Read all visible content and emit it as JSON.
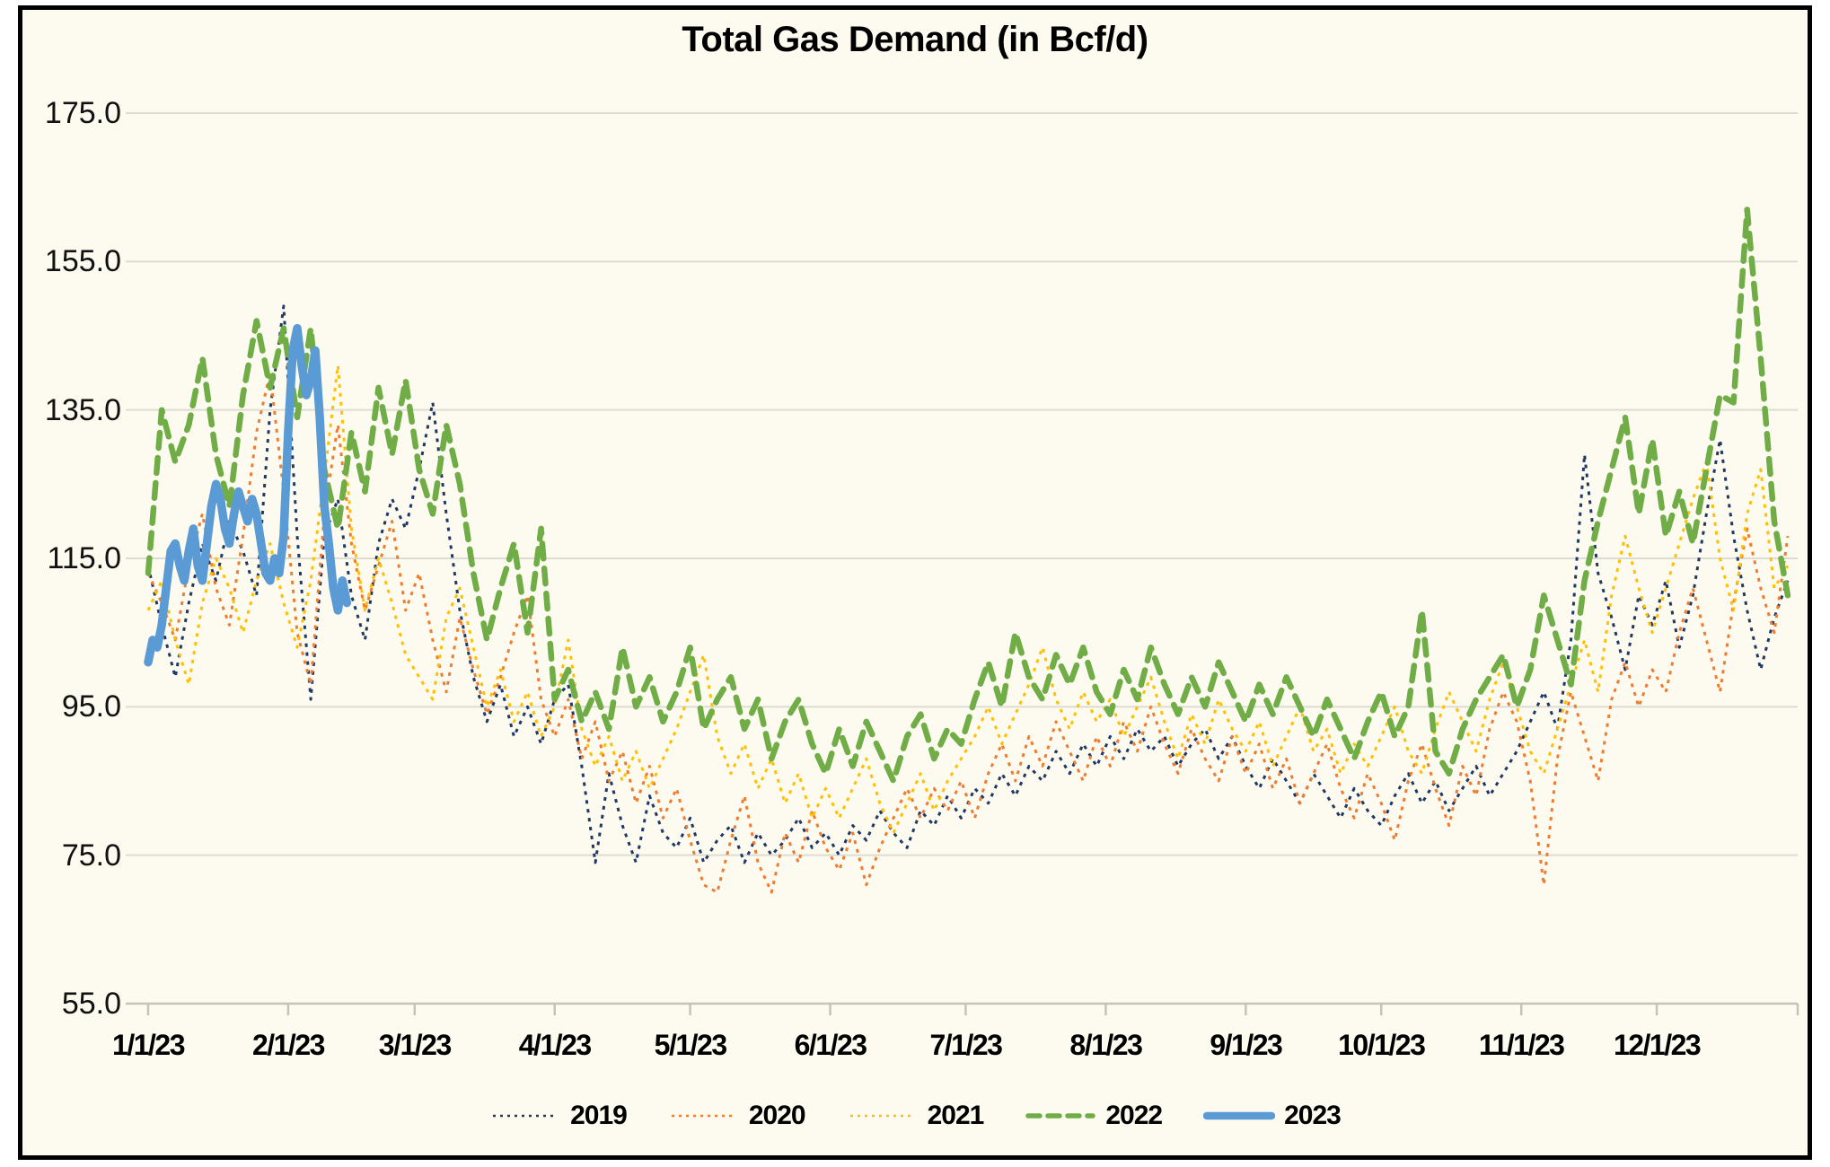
{
  "colors": {
    "background": "#FDFBF0",
    "grid": "#DCDCD2",
    "axis": "#C3C3BA",
    "border": "#000000"
  },
  "chart_data": {
    "type": "line",
    "title": "Total Gas Demand (in Bcf/d)",
    "ylim": [
      55,
      175
    ],
    "grid": "horizontal",
    "legend_position": "bottom",
    "y_axis": {
      "tick_values": [
        175,
        155,
        135,
        115,
        95,
        75,
        55
      ],
      "tick_labels": [
        "175.0",
        "155.0",
        "135.0",
        "115.0",
        "95.0",
        "75.0",
        "55.0"
      ]
    },
    "x_axis": {
      "unit": "day of year (dates shown as m/1/23)",
      "total_days": 364,
      "month_day_offsets": [
        0,
        31,
        59,
        90,
        120,
        151,
        181,
        212,
        243,
        273,
        304,
        334
      ],
      "labels": [
        "1/1/23",
        "2/1/23",
        "3/1/23",
        "4/1/23",
        "5/1/23",
        "6/1/23",
        "7/1/23",
        "8/1/23",
        "9/1/23",
        "10/1/23",
        "11/1/23",
        "12/1/23"
      ]
    },
    "series": [
      {
        "name": "2019",
        "color": "#1F3864",
        "style": "dotted",
        "start_day": 0,
        "interval_days": 3,
        "values": [
          114,
          106,
          99,
          109,
          117,
          112,
          120,
          116,
          110,
          135,
          149,
          118,
          96,
          118,
          123,
          110,
          104,
          117,
          123,
          119,
          127,
          136,
          121,
          108,
          99,
          93,
          98,
          91,
          95,
          90,
          96,
          98,
          87,
          74,
          86,
          79,
          74,
          83,
          78,
          76,
          80,
          74,
          77,
          79,
          74,
          78,
          75,
          77,
          80,
          76,
          78,
          75,
          79,
          77,
          81,
          78,
          76,
          81,
          79,
          83,
          80,
          84,
          82,
          86,
          83,
          87,
          85,
          89,
          86,
          90,
          87,
          91,
          88,
          92,
          89,
          91,
          87,
          90,
          92,
          88,
          91,
          87,
          84,
          88,
          85,
          82,
          86,
          83,
          80,
          84,
          81,
          79,
          83,
          86,
          82,
          85,
          81,
          84,
          87,
          83,
          86,
          89,
          93,
          97,
          92,
          104,
          129,
          113,
          107,
          100,
          110,
          106,
          112,
          103,
          110,
          121,
          131,
          118,
          108,
          100,
          107,
          112
        ]
      },
      {
        "name": "2020",
        "color": "#ED7D31",
        "style": "dotted",
        "start_day": 0,
        "interval_days": 3,
        "values": [
          113,
          109,
          104,
          114,
          121,
          111,
          106,
          118,
          132,
          140,
          124,
          105,
          98,
          121,
          133,
          117,
          108,
          114,
          120,
          108,
          113,
          104,
          97,
          107,
          100,
          94,
          99,
          105,
          110,
          96,
          91,
          96,
          88,
          93,
          85,
          89,
          82,
          87,
          80,
          84,
          77,
          71,
          70,
          77,
          83,
          74,
          70,
          78,
          74,
          81,
          76,
          73,
          78,
          71,
          76,
          80,
          84,
          80,
          84,
          81,
          85,
          80,
          86,
          90,
          85,
          91,
          87,
          93,
          89,
          85,
          91,
          87,
          93,
          89,
          95,
          90,
          86,
          92,
          88,
          85,
          91,
          86,
          90,
          84,
          88,
          82,
          86,
          90,
          84,
          80,
          86,
          82,
          77,
          85,
          90,
          84,
          79,
          87,
          83,
          92,
          97,
          93,
          85,
          71,
          88,
          97,
          91,
          85,
          96,
          101,
          95,
          100,
          97,
          105,
          111,
          104,
          97,
          109,
          119,
          111,
          105,
          118
        ]
      },
      {
        "name": "2021",
        "color": "#FFC000",
        "style": "dotted",
        "start_day": 0,
        "interval_days": 3,
        "values": [
          108,
          112,
          104,
          98,
          109,
          115,
          111,
          105,
          112,
          117,
          109,
          103,
          112,
          126,
          141,
          119,
          108,
          115,
          109,
          102,
          99,
          96,
          107,
          111,
          103,
          95,
          100,
          93,
          97,
          91,
          95,
          104,
          92,
          87,
          91,
          85,
          89,
          84,
          88,
          92,
          97,
          102,
          91,
          86,
          90,
          84,
          88,
          82,
          86,
          80,
          84,
          80,
          84,
          88,
          82,
          78,
          82,
          86,
          81,
          85,
          88,
          91,
          95,
          90,
          94,
          98,
          103,
          96,
          92,
          97,
          93,
          96,
          91,
          95,
          99,
          93,
          88,
          94,
          90,
          96,
          92,
          89,
          93,
          87,
          91,
          95,
          89,
          92,
          86,
          90,
          87,
          91,
          95,
          89,
          86,
          92,
          97,
          93,
          89,
          96,
          101,
          95,
          89,
          86,
          92,
          98,
          104,
          97,
          110,
          118,
          111,
          105,
          111,
          117,
          123,
          128,
          115,
          108,
          121,
          127,
          111,
          114
        ]
      },
      {
        "name": "2022",
        "color": "#70AD47",
        "style": "dashed",
        "start_day": 0,
        "interval_days": 3,
        "values": [
          113,
          135,
          128,
          133,
          142,
          129,
          122,
          137,
          147,
          138,
          146,
          134,
          146,
          127,
          119,
          132,
          124,
          138,
          129,
          139,
          127,
          121,
          133,
          125,
          113,
          104,
          111,
          117,
          105,
          119,
          96,
          100,
          93,
          97,
          92,
          103,
          95,
          99,
          93,
          97,
          103,
          92,
          96,
          99,
          92,
          96,
          88,
          93,
          96,
          90,
          86,
          92,
          87,
          93,
          89,
          85,
          91,
          94,
          88,
          92,
          90,
          96,
          101,
          95,
          105,
          99,
          96,
          102,
          98,
          103,
          97,
          94,
          100,
          96,
          103,
          98,
          94,
          99,
          95,
          101,
          97,
          93,
          98,
          94,
          99,
          95,
          91,
          96,
          92,
          88,
          93,
          97,
          91,
          95,
          108,
          89,
          86,
          92,
          96,
          99,
          102,
          95,
          100,
          110,
          104,
          98,
          112,
          120,
          127,
          134,
          121,
          131,
          118,
          124,
          117,
          127,
          137,
          136,
          162,
          142,
          120,
          110
        ]
      },
      {
        "name": "2023",
        "color": "#5B9BD5",
        "style": "solid",
        "start_day": 0,
        "interval_days": 1,
        "values": [
          101,
          104,
          103,
          106,
          111,
          116,
          117,
          114,
          112,
          116,
          119,
          114,
          112,
          117,
          122,
          125,
          123,
          119,
          117,
          121,
          124,
          122,
          120,
          123,
          121,
          117,
          113,
          112,
          115,
          113,
          118,
          132,
          143,
          146,
          141,
          137,
          139,
          143,
          134,
          122,
          117,
          111,
          108,
          112,
          109
        ]
      }
    ]
  }
}
